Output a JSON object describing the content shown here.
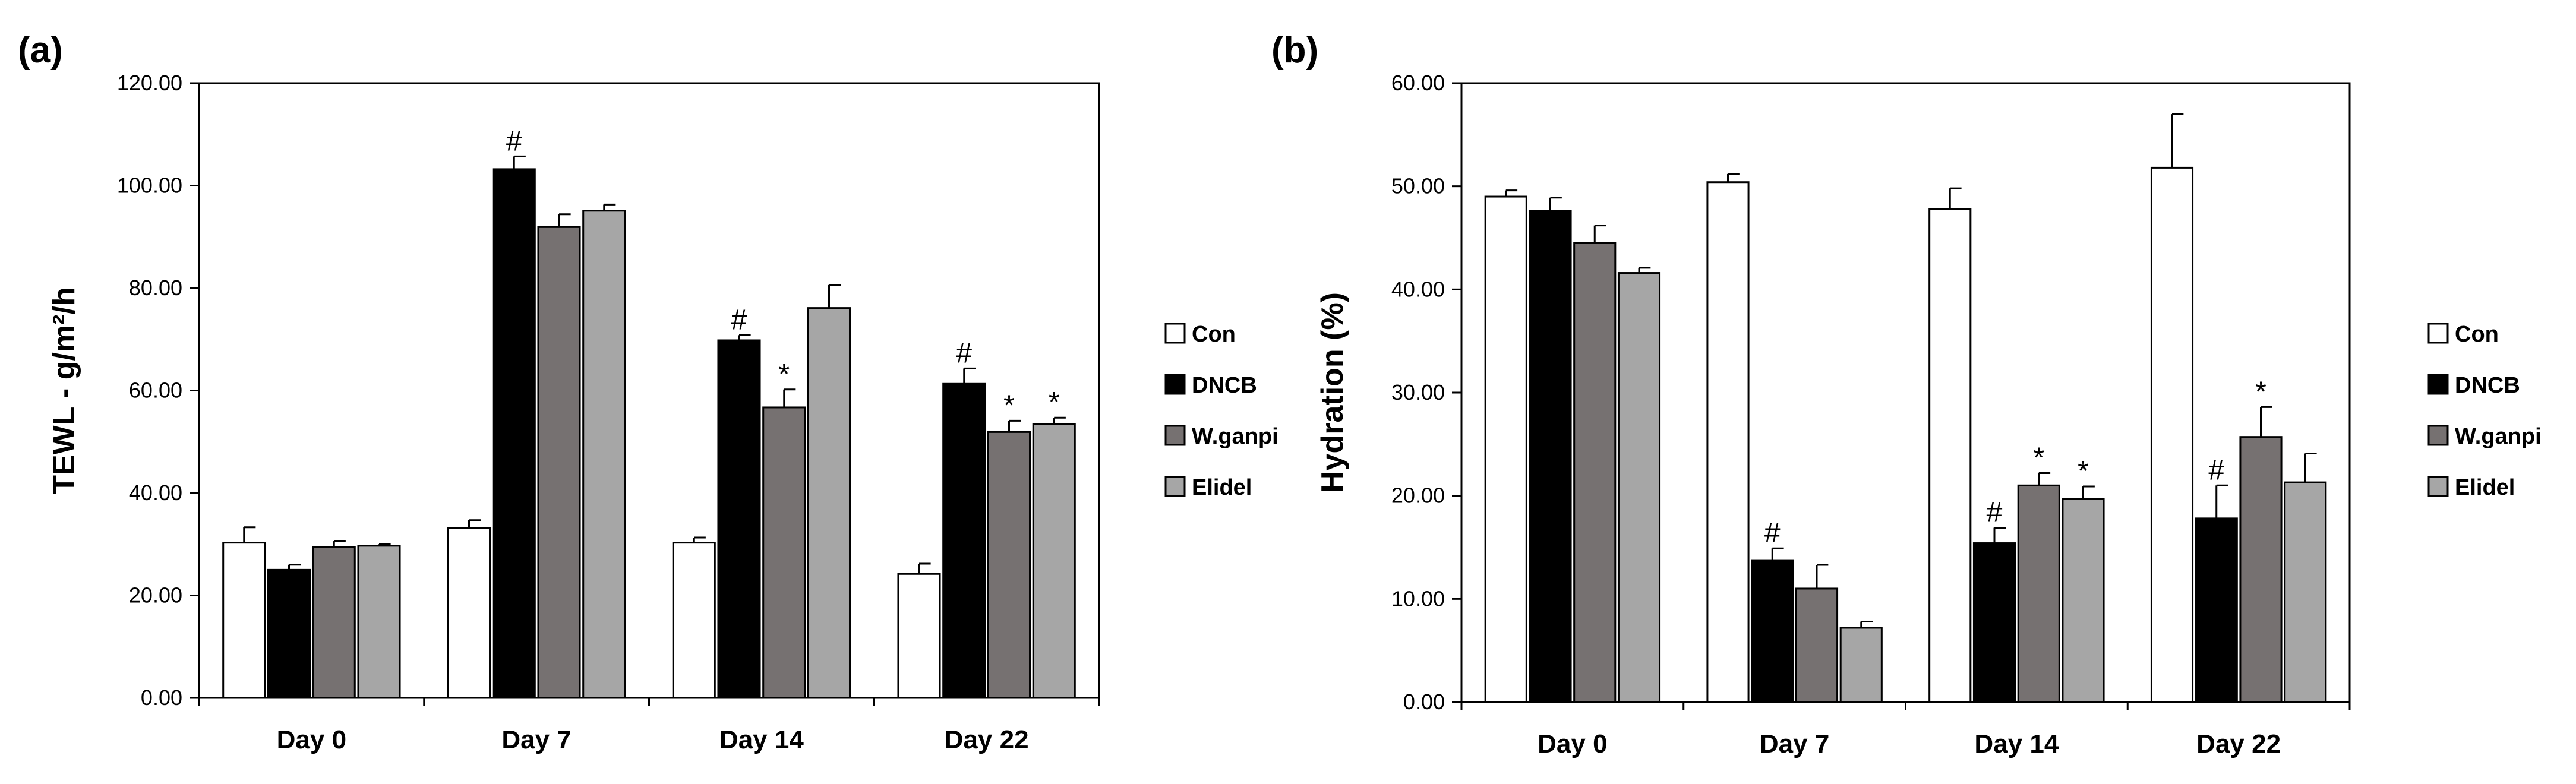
{
  "chart_data": [
    {
      "type": "bar",
      "panel_label": "(a)",
      "categories": [
        "Day 0",
        "Day 7",
        "Day 14",
        "Day 22"
      ],
      "ylabel": "TEWL - g/m²/h",
      "ylim": [
        0,
        120
      ],
      "yticks": [
        "0.00",
        "20.00",
        "40.00",
        "60.00",
        "80.00",
        "100.00",
        "120.00"
      ],
      "series": [
        {
          "name": "Con",
          "color": "#ffffff",
          "values": [
            30.3,
            33.2,
            30.3,
            24.2
          ],
          "errors": [
            3.0,
            1.5,
            1.0,
            2.0
          ],
          "markers": [
            "",
            "",
            "",
            ""
          ]
        },
        {
          "name": "DNCB",
          "color": "#000000",
          "values": [
            25.0,
            103.2,
            69.8,
            61.3
          ],
          "errors": [
            1.0,
            2.5,
            1.0,
            3.0
          ],
          "markers": [
            "",
            "#",
            "#",
            "#"
          ]
        },
        {
          "name": "W.ganpi",
          "color": "#767171",
          "values": [
            29.4,
            91.9,
            56.7,
            51.9
          ],
          "errors": [
            1.2,
            2.5,
            3.5,
            2.2
          ],
          "markers": [
            "",
            "",
            "*",
            "*"
          ]
        },
        {
          "name": "Elidel",
          "color": "#a6a6a6",
          "values": [
            29.7,
            95.1,
            76.1,
            53.5
          ],
          "errors": [
            0.3,
            1.2,
            4.5,
            1.2
          ],
          "markers": [
            "",
            "",
            "",
            "*"
          ]
        }
      ]
    },
    {
      "type": "bar",
      "panel_label": "(b)",
      "categories": [
        "Day 0",
        "Day 7",
        "Day 14",
        "Day 22"
      ],
      "ylabel": "Hydration (%)",
      "ylim": [
        0,
        60
      ],
      "yticks": [
        "0.00",
        "10.00",
        "20.00",
        "30.00",
        "40.00",
        "50.00",
        "60.00"
      ],
      "series": [
        {
          "name": "Con",
          "color": "#ffffff",
          "values": [
            49.0,
            50.4,
            47.8,
            51.8
          ],
          "errors": [
            0.6,
            0.8,
            2.0,
            5.2
          ],
          "markers": [
            "",
            "",
            "",
            ""
          ]
        },
        {
          "name": "DNCB",
          "color": "#000000",
          "values": [
            47.6,
            13.7,
            15.4,
            17.8
          ],
          "errors": [
            1.3,
            1.2,
            1.5,
            3.2
          ],
          "markers": [
            "",
            "#",
            "#",
            "#"
          ]
        },
        {
          "name": "W.ganpi",
          "color": "#767171",
          "values": [
            44.5,
            11.0,
            21.0,
            25.7
          ],
          "errors": [
            1.7,
            2.3,
            1.2,
            2.9
          ],
          "markers": [
            "",
            "",
            "*",
            "*"
          ]
        },
        {
          "name": "Elidel",
          "color": "#a6a6a6",
          "values": [
            41.6,
            7.2,
            19.7,
            21.3
          ],
          "errors": [
            0.5,
            0.6,
            1.2,
            2.8
          ],
          "markers": [
            "",
            "",
            "*",
            ""
          ]
        }
      ]
    }
  ]
}
